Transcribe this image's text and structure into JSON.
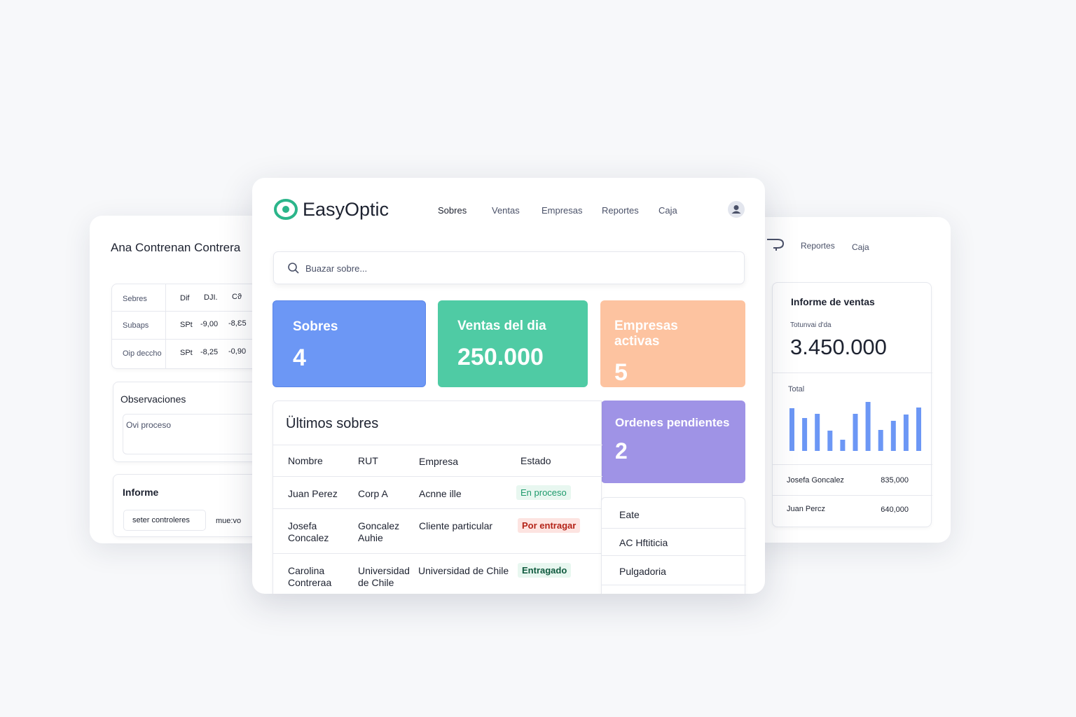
{
  "left_panel": {
    "title": "Ana Contrenan Contrera",
    "table": {
      "header": [
        "Sebres",
        "Dif",
        "DJI.",
        "Cϑ"
      ],
      "rows": [
        [
          "Subaps",
          "SPt",
          "-9,00",
          "-8,Ɛ5"
        ],
        [
          "Oip deccho",
          "SPt",
          "-8,25",
          "-0,90"
        ]
      ]
    },
    "observations": {
      "title": "Observaciones",
      "text": "Ovi proceso"
    },
    "report": {
      "title": "Informe",
      "input": "seter controleres",
      "button": "mue:vo"
    }
  },
  "right_panel": {
    "nav": [
      "Reportes",
      "Caja"
    ],
    "title": "Informe de ventas",
    "subtitle": "Totunvai d'da",
    "total": "3.450.000",
    "chart_label": "Total",
    "bars": [
      61,
      47,
      53,
      29,
      16,
      53,
      70,
      30,
      43,
      52,
      62
    ],
    "rows": [
      [
        "Josefa Goncalez",
        "835,000"
      ],
      [
        "Juan Percz",
        "640,000"
      ]
    ]
  },
  "header": {
    "logo": "EasyOptic",
    "nav": [
      "Sobres",
      "Ventas",
      "Empresas",
      "Reportes",
      "Caja"
    ]
  },
  "search": {
    "placeholder": "Buazar sobre..."
  },
  "stats": [
    {
      "label": "Sobres",
      "value": "4"
    },
    {
      "label": "Ventas del dia",
      "value": "250.000"
    },
    {
      "label": "Empresas activas",
      "value": "5"
    },
    {
      "label": "Ordenes pendientes",
      "value": "2"
    }
  ],
  "table": {
    "title": "Ültimos sobres",
    "columns": [
      "Nombre",
      "RUT",
      "Empresa",
      "Estado"
    ],
    "rows": [
      [
        "Juan Perez",
        "Corp A",
        "Acnne ille",
        "En proceso"
      ],
      [
        "Josefa Concalez",
        "Goncalez Auhie",
        "Cliente particular",
        "Por entragar"
      ],
      [
        "Carolina Contreraa",
        "Universidad de Chile",
        "Universidad de Chile",
        "Entragado"
      ]
    ]
  },
  "side_list": [
    "Eate",
    "AC Hftiticia",
    "Pulgadoria"
  ]
}
